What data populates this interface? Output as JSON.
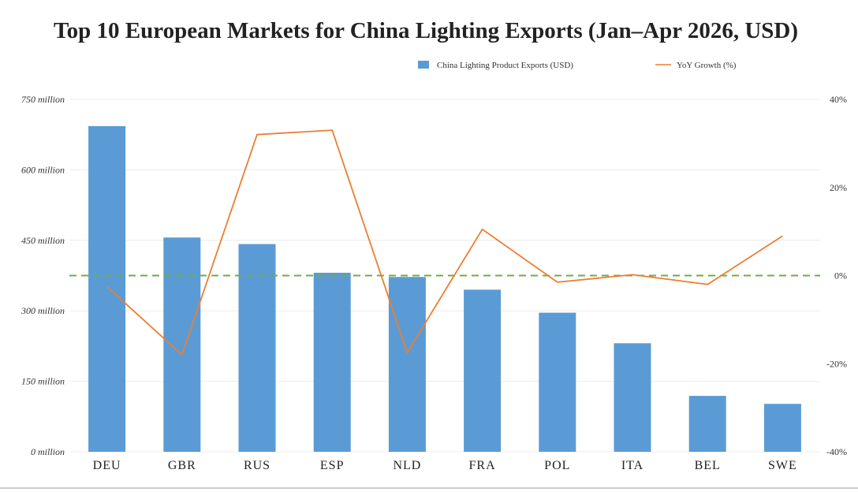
{
  "chart_data": {
    "type": "bar",
    "title": "Top 10 European Markets for China Lighting Exports (Jan–Apr 2026, USD)",
    "categories": [
      "DEU",
      "GBR",
      "RUS",
      "ESP",
      "NLD",
      "FRA",
      "POL",
      "ITA",
      "BEL",
      "SWE"
    ],
    "series": [
      {
        "name": "China Lighting Product Exports (USD)",
        "type": "bar",
        "axis": "left",
        "color": "#5b9bd5",
        "values": [
          693000000,
          456000000,
          442000000,
          381000000,
          372000000,
          345000000,
          296000000,
          231000000,
          119000000,
          102000000
        ]
      },
      {
        "name": "YoY Growth (%)",
        "type": "line",
        "axis": "right",
        "color": "#ed7d31",
        "values": [
          -2.5,
          -18,
          32,
          33,
          -17.5,
          10.5,
          -1.5,
          0.2,
          -2,
          9
        ]
      }
    ],
    "reference_line": {
      "axis": "right",
      "value": 0,
      "color": "#70ad47",
      "style": "dashed"
    },
    "y_left": {
      "range": [
        0,
        750000000
      ],
      "ticks": [
        0,
        150000000,
        300000000,
        450000000,
        600000000,
        750000000
      ],
      "tick_labels": [
        "0 million",
        "150 million",
        "300 million",
        "450 million",
        "600 million",
        "750 million"
      ]
    },
    "y_right": {
      "range": [
        -40,
        40
      ],
      "ticks": [
        -40,
        -20,
        0,
        20,
        40
      ],
      "tick_labels": [
        "-40%",
        "-20%",
        "0%",
        "20%",
        "40%"
      ]
    },
    "grid": true,
    "legend_position": "top-right"
  }
}
